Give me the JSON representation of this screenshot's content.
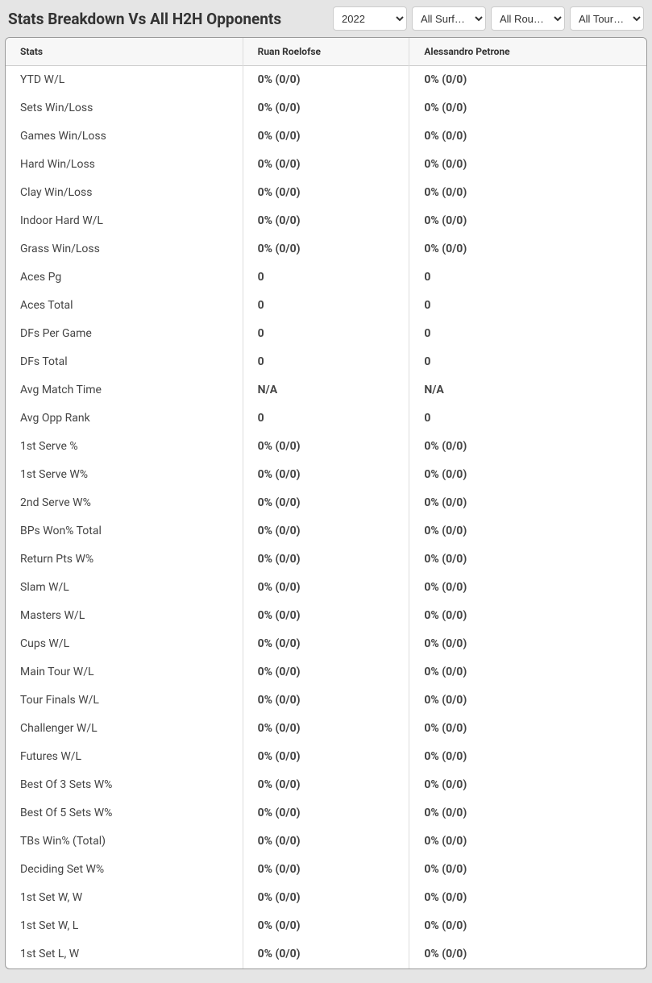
{
  "header": {
    "title": "Stats Breakdown Vs All H2H Opponents"
  },
  "filters": {
    "year": {
      "selected": "2022",
      "options": [
        "2022"
      ]
    },
    "surface": {
      "selected": "All Surf…",
      "options": [
        "All Surf…"
      ]
    },
    "round": {
      "selected": "All Rou…",
      "options": [
        "All Rou…"
      ]
    },
    "tournament": {
      "selected": "All Tour…",
      "options": [
        "All Tour…"
      ]
    }
  },
  "table": {
    "columns": {
      "stats": "Stats",
      "player1": "Ruan Roelofse",
      "player2": "Alessandro Petrone"
    },
    "rows": [
      {
        "stat": "YTD W/L",
        "p1": "0% (0/0)",
        "p2": "0% (0/0)"
      },
      {
        "stat": "Sets Win/Loss",
        "p1": "0% (0/0)",
        "p2": "0% (0/0)"
      },
      {
        "stat": "Games Win/Loss",
        "p1": "0% (0/0)",
        "p2": "0% (0/0)"
      },
      {
        "stat": "Hard Win/Loss",
        "p1": "0% (0/0)",
        "p2": "0% (0/0)"
      },
      {
        "stat": "Clay Win/Loss",
        "p1": "0% (0/0)",
        "p2": "0% (0/0)"
      },
      {
        "stat": "Indoor Hard W/L",
        "p1": "0% (0/0)",
        "p2": "0% (0/0)"
      },
      {
        "stat": "Grass Win/Loss",
        "p1": "0% (0/0)",
        "p2": "0% (0/0)"
      },
      {
        "stat": "Aces Pg",
        "p1": "0",
        "p2": "0"
      },
      {
        "stat": "Aces Total",
        "p1": "0",
        "p2": "0"
      },
      {
        "stat": "DFs Per Game",
        "p1": "0",
        "p2": "0"
      },
      {
        "stat": "DFs Total",
        "p1": "0",
        "p2": "0"
      },
      {
        "stat": "Avg Match Time",
        "p1": "N/A",
        "p2": "N/A"
      },
      {
        "stat": "Avg Opp Rank",
        "p1": "0",
        "p2": "0"
      },
      {
        "stat": "1st Serve %",
        "p1": "0% (0/0)",
        "p2": "0% (0/0)"
      },
      {
        "stat": "1st Serve W%",
        "p1": "0% (0/0)",
        "p2": "0% (0/0)"
      },
      {
        "stat": "2nd Serve W%",
        "p1": "0% (0/0)",
        "p2": "0% (0/0)"
      },
      {
        "stat": "BPs Won% Total",
        "p1": "0% (0/0)",
        "p2": "0% (0/0)"
      },
      {
        "stat": "Return Pts W%",
        "p1": "0% (0/0)",
        "p2": "0% (0/0)"
      },
      {
        "stat": "Slam W/L",
        "p1": "0% (0/0)",
        "p2": "0% (0/0)"
      },
      {
        "stat": "Masters W/L",
        "p1": "0% (0/0)",
        "p2": "0% (0/0)"
      },
      {
        "stat": "Cups W/L",
        "p1": "0% (0/0)",
        "p2": "0% (0/0)"
      },
      {
        "stat": "Main Tour W/L",
        "p1": "0% (0/0)",
        "p2": "0% (0/0)"
      },
      {
        "stat": "Tour Finals W/L",
        "p1": "0% (0/0)",
        "p2": "0% (0/0)"
      },
      {
        "stat": "Challenger W/L",
        "p1": "0% (0/0)",
        "p2": "0% (0/0)"
      },
      {
        "stat": "Futures W/L",
        "p1": "0% (0/0)",
        "p2": "0% (0/0)"
      },
      {
        "stat": "Best Of 3 Sets W%",
        "p1": "0% (0/0)",
        "p2": "0% (0/0)"
      },
      {
        "stat": "Best Of 5 Sets W%",
        "p1": "0% (0/0)",
        "p2": "0% (0/0)"
      },
      {
        "stat": "TBs Win% (Total)",
        "p1": "0% (0/0)",
        "p2": "0% (0/0)"
      },
      {
        "stat": "Deciding Set W%",
        "p1": "0% (0/0)",
        "p2": "0% (0/0)"
      },
      {
        "stat": "1st Set W, W",
        "p1": "0% (0/0)",
        "p2": "0% (0/0)"
      },
      {
        "stat": "1st Set W, L",
        "p1": "0% (0/0)",
        "p2": "0% (0/0)"
      },
      {
        "stat": "1st Set L, W",
        "p1": "0% (0/0)",
        "p2": "0% (0/0)"
      }
    ]
  },
  "styling": {
    "body_bg": "#e5e5e5",
    "table_bg": "#ffffff",
    "table_border": "#999999",
    "header_row_bg": "#f7f7f7",
    "cell_border": "#dddddd",
    "title_color": "#333333",
    "text_color": "#444444",
    "title_fontsize": 19,
    "header_fontsize": 12,
    "cell_fontsize": 14
  }
}
